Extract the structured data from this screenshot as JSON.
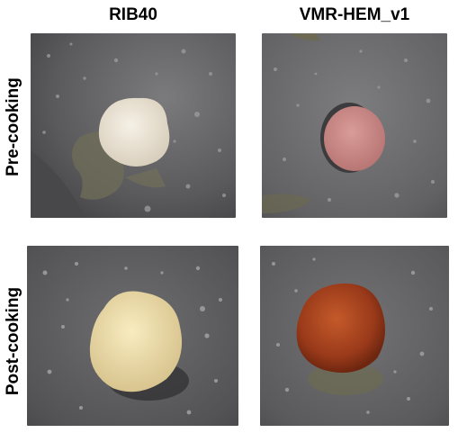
{
  "columns": [
    "RIB40",
    "VMR-HEM_v1"
  ],
  "rows": [
    "Pre-cooking",
    "Post-cooking"
  ],
  "panels": [
    {
      "sample": "RIB40",
      "stage": "Pre-cooking",
      "subject": "raw pale fungal mycelium patty on oiled non-stick pan",
      "colors": {
        "pan": "#5c5c5e",
        "patty": "#eee6d6"
      }
    },
    {
      "sample": "VMR-HEM_v1",
      "stage": "Pre-cooking",
      "subject": "raw pink heme-containing mycelium patty on oiled pan",
      "colors": {
        "pan": "#6a6a6c",
        "patty": "#cf8e8c"
      }
    },
    {
      "sample": "RIB40",
      "stage": "Post-cooking",
      "subject": "cooked pale yellow mycelium patty in pan",
      "colors": {
        "pan": "#565658",
        "patty": "#f0e2b0"
      }
    },
    {
      "sample": "VMR-HEM_v1",
      "stage": "Post-cooking",
      "subject": "cooked browned red-brown mycelium patty in pan",
      "colors": {
        "pan": "#5e5e60",
        "patty": "#a8401c"
      }
    }
  ]
}
